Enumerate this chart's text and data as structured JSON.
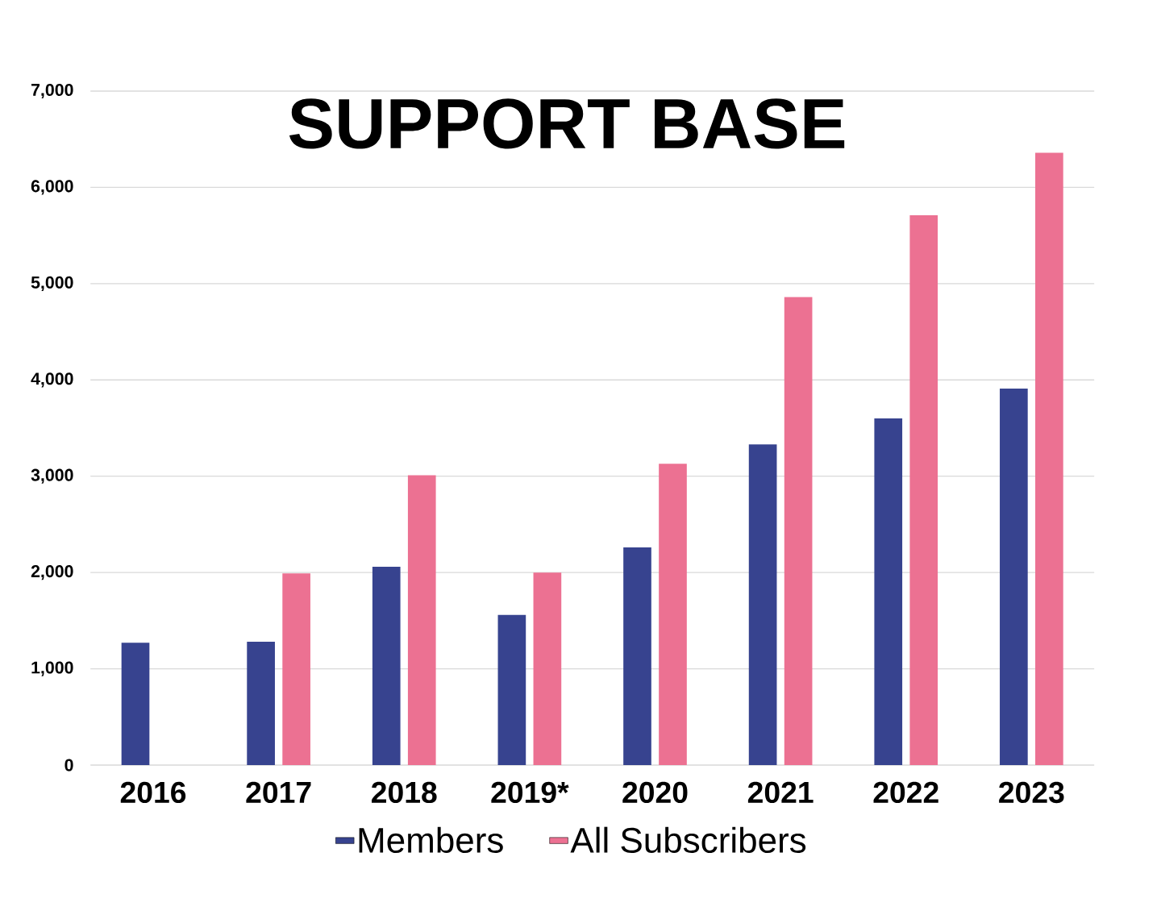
{
  "chart_data": {
    "type": "bar",
    "title": "SUPPORT BASE",
    "categories": [
      "2016",
      "2017",
      "2018",
      "2019*",
      "2020",
      "2021",
      "2022",
      "2023"
    ],
    "series": [
      {
        "name": "Members",
        "color": "#37438f",
        "values": [
          1270,
          1280,
          2060,
          1560,
          2260,
          3330,
          3600,
          3910
        ]
      },
      {
        "name": "All Subscribers",
        "color": "#ec7192",
        "values": [
          null,
          1990,
          3010,
          2000,
          3130,
          4860,
          5710,
          6360
        ]
      }
    ],
    "ylim": [
      0,
      7000
    ],
    "yticks": [
      0,
      {
        "value": 1000,
        "label": "1,000"
      },
      {
        "value": 2000,
        "label": "2,000"
      },
      {
        "value": 3000,
        "label": "3,000"
      },
      {
        "value": 4000,
        "label": "4,000"
      },
      {
        "value": 5000,
        "label": "5,000"
      },
      {
        "value": 6000,
        "label": "6,000"
      },
      {
        "value": 7000,
        "label": "7,000"
      }
    ],
    "grid": "y",
    "legend": "bottom"
  }
}
